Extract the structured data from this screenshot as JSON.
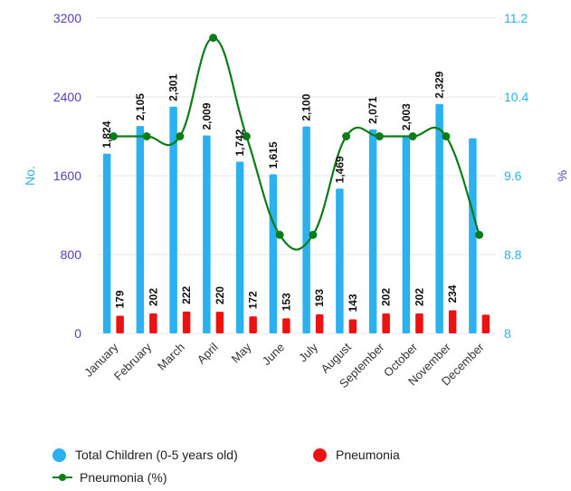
{
  "chart_data": {
    "type": "bar",
    "categories": [
      "January",
      "February",
      "March",
      "April",
      "May",
      "June",
      "July",
      "August",
      "September",
      "October",
      "November",
      "December"
    ],
    "series": [
      {
        "name": "Total Children (0-5 years old)",
        "type": "bar",
        "axis": "left",
        "color": "#2bb0f0",
        "values": [
          1824,
          2105,
          2301,
          2009,
          1742,
          1615,
          2100,
          1469,
          2071,
          2003,
          2329,
          1980
        ],
        "labels": [
          "1,824",
          "2,105",
          "2,301",
          "2,009",
          "1,742",
          "1,615",
          "2,100",
          "1,469",
          "2,071",
          "2,003",
          "2,329",
          ""
        ]
      },
      {
        "name": "Pneumonia",
        "type": "bar",
        "axis": "left",
        "color": "#ee1111",
        "values": [
          179,
          202,
          222,
          220,
          172,
          153,
          193,
          143,
          202,
          202,
          234,
          190
        ],
        "labels": [
          "179",
          "202",
          "222",
          "220",
          "172",
          "153",
          "193",
          "143",
          "202",
          "202",
          "234",
          ""
        ]
      },
      {
        "name": "Pneumonia (%)",
        "type": "line",
        "axis": "right",
        "color": "#0a7d16",
        "values": [
          10.0,
          10.0,
          10.0,
          11.0,
          10.0,
          9.0,
          9.0,
          10.0,
          10.0,
          10.0,
          10.0,
          9.0
        ]
      }
    ],
    "ylabel": "No.",
    "y2label": "%",
    "ylim": [
      0,
      3200
    ],
    "y2lim": [
      8,
      11.2
    ],
    "yticks": [
      "0",
      "800",
      "1600",
      "2400",
      "3200"
    ],
    "y2ticks": [
      "8",
      "8.8",
      "9.6",
      "10.4",
      "11.2"
    ],
    "grid": true,
    "legend": "bottom-left"
  },
  "colors": {
    "left_axis": "#5a3db5",
    "right_axis": "#2bb0f0",
    "grid": "#e6e6e6"
  }
}
